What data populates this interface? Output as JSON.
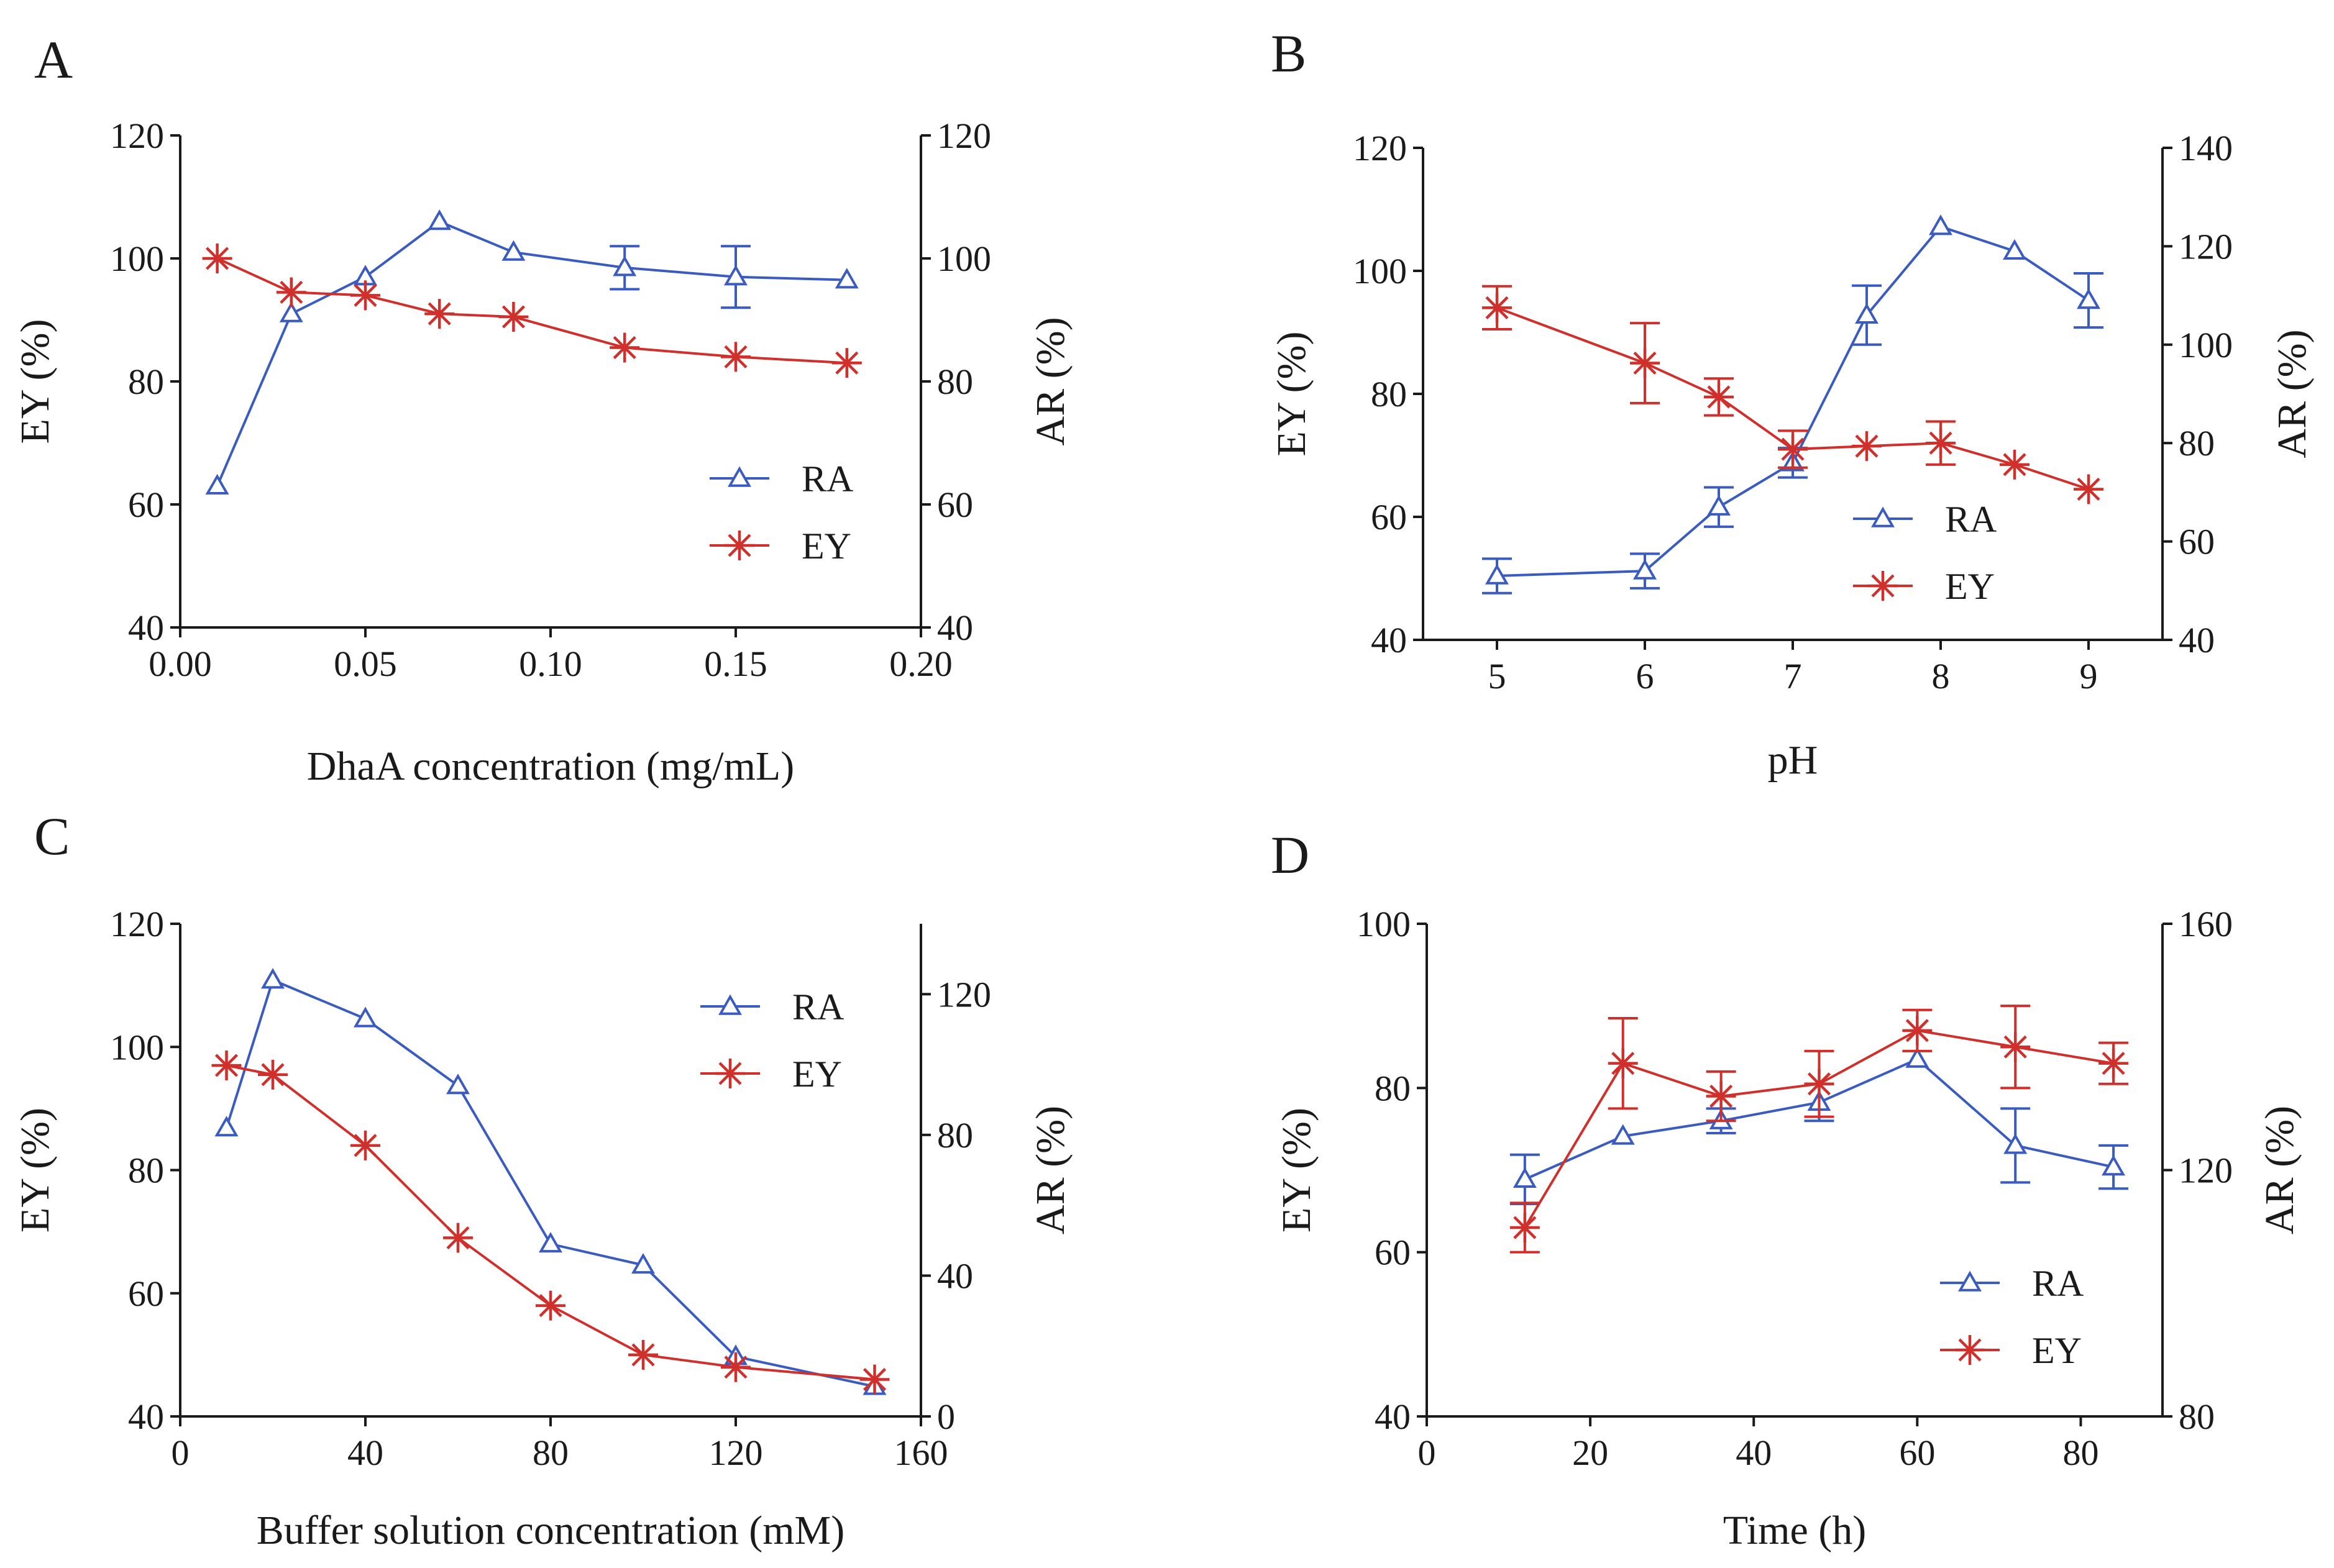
{
  "colors": {
    "ra": "#3a5bbf",
    "ey": "#d0302b",
    "axis": "#1a1a1a"
  },
  "chart_data": [
    {
      "id": "A",
      "type": "line",
      "title": "",
      "xlabel": "DhaA concentration (mg/mL)",
      "ylabel": "EY (%)",
      "y2label": "AR (%)",
      "xlim": [
        0,
        0.2
      ],
      "ylim": [
        40,
        120
      ],
      "y2lim": [
        40,
        120
      ],
      "xticks": [
        "0.00",
        "0.05",
        "0.10",
        "0.15",
        "0.20"
      ],
      "xtickvals": [
        0,
        0.05,
        0.1,
        0.15,
        0.2
      ],
      "yticks": [
        "40",
        "60",
        "80",
        "100",
        "120"
      ],
      "ytickvals": [
        40,
        60,
        80,
        100,
        120
      ],
      "y2ticks": [
        "40",
        "60",
        "80",
        "100",
        "120"
      ],
      "y2tickvals": [
        40,
        60,
        80,
        100,
        120
      ],
      "legend_position": "bottom-right",
      "series": [
        {
          "name": "RA",
          "marker": "triangle",
          "axis": "right",
          "x": [
            0.01,
            0.03,
            0.05,
            0.07,
            0.09,
            0.12,
            0.15,
            0.18
          ],
          "values": [
            63,
            91,
            97,
            106,
            101,
            98.5,
            97,
            96.5
          ],
          "errors": [
            0,
            0,
            0,
            0,
            0,
            3.5,
            5,
            0
          ]
        },
        {
          "name": "EY",
          "marker": "asterisk",
          "axis": "left",
          "x": [
            0.01,
            0.03,
            0.05,
            0.07,
            0.09,
            0.12,
            0.15,
            0.18
          ],
          "values": [
            100,
            94.5,
            94,
            91,
            90.5,
            85.5,
            84,
            83
          ],
          "errors": [
            0,
            0,
            0,
            0,
            0,
            0,
            0,
            0
          ]
        }
      ]
    },
    {
      "id": "B",
      "type": "line",
      "title": "",
      "xlabel": "pH",
      "ylabel": "EY (%)",
      "y2label": "AR (%)",
      "xlim": [
        4.5,
        9.5
      ],
      "ylim": [
        40,
        120
      ],
      "y2lim": [
        40,
        140
      ],
      "xticks": [
        "5",
        "6",
        "7",
        "8",
        "9"
      ],
      "xtickvals": [
        5,
        6,
        7,
        8,
        9
      ],
      "yticks": [
        "40",
        "60",
        "80",
        "100",
        "120"
      ],
      "ytickvals": [
        40,
        60,
        80,
        100,
        120
      ],
      "y2ticks": [
        "40",
        "60",
        "80",
        "100",
        "120",
        "140"
      ],
      "y2tickvals": [
        40,
        60,
        80,
        100,
        120,
        140
      ],
      "legend_position": "bottom-center",
      "series": [
        {
          "name": "RA",
          "marker": "triangle",
          "axis": "right",
          "x": [
            5,
            6,
            6.5,
            7,
            7.5,
            8,
            8.5,
            9
          ],
          "values": [
            53,
            54,
            67,
            76,
            106,
            124,
            119,
            109
          ],
          "errors": [
            3.5,
            3.5,
            4,
            3,
            6,
            0,
            0,
            5.5
          ]
        },
        {
          "name": "EY",
          "marker": "asterisk",
          "axis": "left",
          "x": [
            5,
            6,
            6.5,
            7,
            7.5,
            8,
            8.5,
            9
          ],
          "values": [
            94,
            85,
            79.5,
            71,
            71.5,
            72,
            68.5,
            64.5
          ],
          "errors": [
            3.5,
            6.5,
            3,
            3,
            0,
            3.5,
            0,
            0
          ]
        }
      ]
    },
    {
      "id": "C",
      "type": "line",
      "title": "",
      "xlabel": "Buffer solution concentration (mM)",
      "ylabel": "EY (%)",
      "y2label": "AR (%)",
      "xlim": [
        0,
        160
      ],
      "ylim": [
        40,
        120
      ],
      "y2lim": [
        0,
        140
      ],
      "xticks": [
        "0",
        "40",
        "80",
        "120",
        "160"
      ],
      "xtickvals": [
        0,
        40,
        80,
        120,
        160
      ],
      "yticks": [
        "40",
        "60",
        "80",
        "100",
        "120"
      ],
      "ytickvals": [
        40,
        60,
        80,
        100,
        120
      ],
      "y2ticks": [
        "0",
        "40",
        "80",
        "120"
      ],
      "y2tickvals": [
        0,
        40,
        80,
        120
      ],
      "legend_position": "top-right",
      "series": [
        {
          "name": "RA",
          "marker": "triangle",
          "axis": "right",
          "x": [
            10,
            20,
            40,
            60,
            80,
            100,
            120,
            150
          ],
          "values": [
            82,
            124,
            113,
            94,
            49,
            43,
            17,
            8.5
          ],
          "errors": [
            0,
            0,
            0,
            0,
            0,
            0,
            0,
            0
          ]
        },
        {
          "name": "EY",
          "marker": "asterisk",
          "axis": "left",
          "x": [
            10,
            20,
            40,
            60,
            80,
            100,
            120,
            150
          ],
          "values": [
            97,
            95.5,
            84,
            69,
            58,
            50,
            48,
            46
          ],
          "errors": [
            0,
            0,
            0,
            0,
            0,
            0,
            0,
            0
          ]
        }
      ]
    },
    {
      "id": "D",
      "type": "line",
      "title": "",
      "xlabel": "Time (h)",
      "ylabel": "EY (%)",
      "y2label": "AR (%)",
      "xlim": [
        0,
        90
      ],
      "ylim": [
        40,
        100
      ],
      "y2lim": [
        80,
        160
      ],
      "xticks": [
        "0",
        "20",
        "40",
        "60",
        "80"
      ],
      "xtickvals": [
        0,
        20,
        40,
        60,
        80
      ],
      "yticks": [
        "40",
        "60",
        "80",
        "100"
      ],
      "ytickvals": [
        40,
        60,
        80,
        100
      ],
      "y2ticks": [
        "80",
        "120",
        "160"
      ],
      "y2tickvals": [
        80,
        120,
        160
      ],
      "legend_position": "bottom-right",
      "series": [
        {
          "name": "RA",
          "marker": "triangle",
          "axis": "right",
          "x": [
            12,
            24,
            36,
            48,
            60,
            72,
            84
          ],
          "values": [
            118.5,
            125.5,
            128,
            131,
            138,
            124,
            120.5
          ],
          "errors": [
            4,
            0,
            2,
            3,
            0,
            6,
            3.5
          ]
        },
        {
          "name": "EY",
          "marker": "asterisk",
          "axis": "left",
          "x": [
            12,
            24,
            36,
            48,
            60,
            72,
            84
          ],
          "values": [
            63,
            83,
            79,
            80.5,
            87,
            85,
            83
          ],
          "errors": [
            3,
            5.5,
            3,
            4,
            2.5,
            5,
            2.5
          ]
        }
      ]
    }
  ]
}
